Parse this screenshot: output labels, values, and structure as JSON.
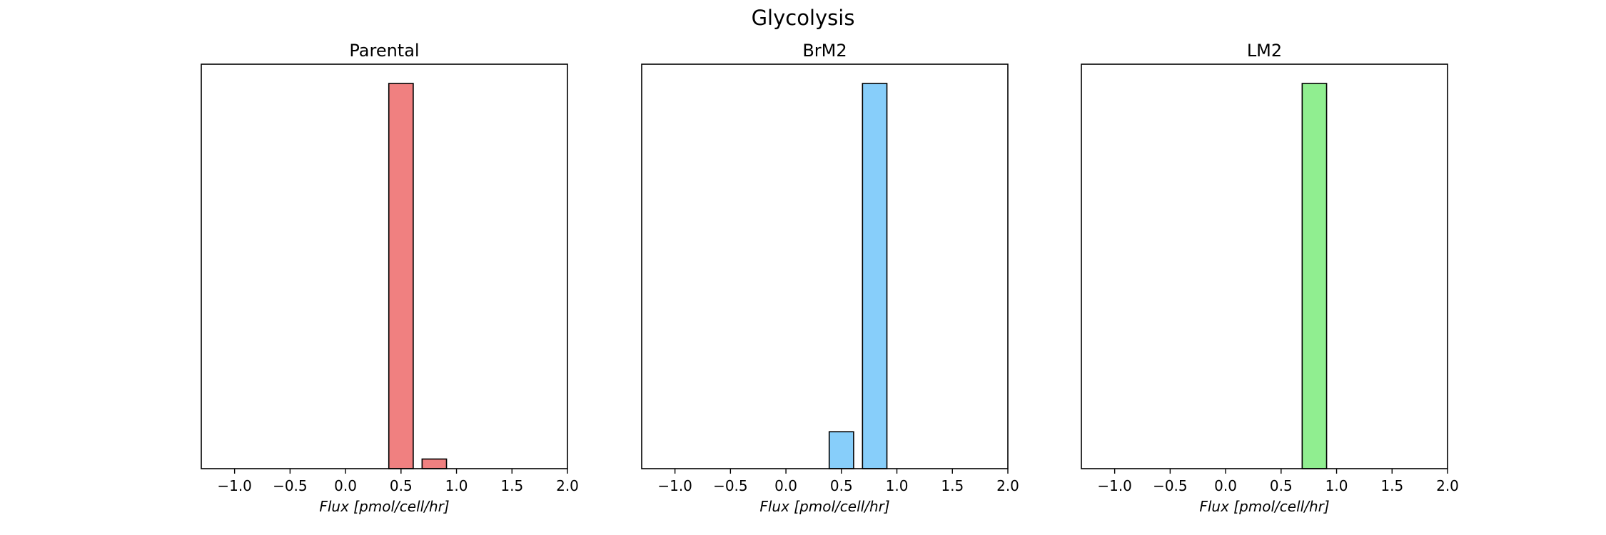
{
  "figure": {
    "title": "Glycolysis"
  },
  "chart_data": [
    {
      "type": "bar",
      "title": "Parental",
      "xlabel": "Flux [pmol/cell/hr]",
      "ylabel": "",
      "xlim": [
        -1.3,
        2.0
      ],
      "xticks": [
        "−1.0",
        "−0.5",
        "0.0",
        "0.5",
        "1.0",
        "1.5",
        "2.0"
      ],
      "yticks_visible": false,
      "color": "#f08080",
      "edgecolor": "#000000",
      "bins": [
        {
          "x": -1.05,
          "value": 0
        },
        {
          "x": -0.75,
          "value": 0
        },
        {
          "x": -0.45,
          "value": 0
        },
        {
          "x": -0.15,
          "value": 0
        },
        {
          "x": 0.15,
          "value": 0
        },
        {
          "x": 0.45,
          "value": 0
        },
        {
          "x": 0.5,
          "value": 24
        },
        {
          "x": 0.8,
          "value": 0.6
        },
        {
          "x": 1.1,
          "value": 0
        },
        {
          "x": 1.4,
          "value": 0
        },
        {
          "x": 1.7,
          "value": 0
        }
      ]
    },
    {
      "type": "bar",
      "title": "BrM2",
      "xlabel": "Flux [pmol/cell/hr]",
      "ylabel": "",
      "xlim": [
        -1.3,
        2.0
      ],
      "xticks": [
        "−1.0",
        "−0.5",
        "0.0",
        "0.5",
        "1.0",
        "1.5",
        "2.0"
      ],
      "yticks_visible": false,
      "color": "#87cefa",
      "edgecolor": "#000000",
      "bins": [
        {
          "x": -1.05,
          "value": 0
        },
        {
          "x": -0.75,
          "value": 0
        },
        {
          "x": -0.45,
          "value": 0
        },
        {
          "x": -0.15,
          "value": 0
        },
        {
          "x": 0.15,
          "value": 0
        },
        {
          "x": 0.5,
          "value": 2.3
        },
        {
          "x": 0.8,
          "value": 24
        },
        {
          "x": 1.1,
          "value": 0
        },
        {
          "x": 1.4,
          "value": 0
        },
        {
          "x": 1.7,
          "value": 0
        }
      ]
    },
    {
      "type": "bar",
      "title": "LM2",
      "xlabel": "Flux [pmol/cell/hr]",
      "ylabel": "",
      "xlim": [
        -1.3,
        2.0
      ],
      "xticks": [
        "−1.0",
        "−0.5",
        "0.0",
        "0.5",
        "1.0",
        "1.5",
        "2.0"
      ],
      "yticks_visible": false,
      "color": "#90ee90",
      "edgecolor": "#000000",
      "bins": [
        {
          "x": -1.05,
          "value": 0
        },
        {
          "x": -0.75,
          "value": 0
        },
        {
          "x": -0.45,
          "value": 0
        },
        {
          "x": -0.15,
          "value": 0
        },
        {
          "x": 0.15,
          "value": 0
        },
        {
          "x": 0.5,
          "value": 0
        },
        {
          "x": 0.8,
          "value": 24
        },
        {
          "x": 1.1,
          "value": 0
        },
        {
          "x": 1.4,
          "value": 0
        },
        {
          "x": 1.7,
          "value": 0
        }
      ]
    }
  ]
}
